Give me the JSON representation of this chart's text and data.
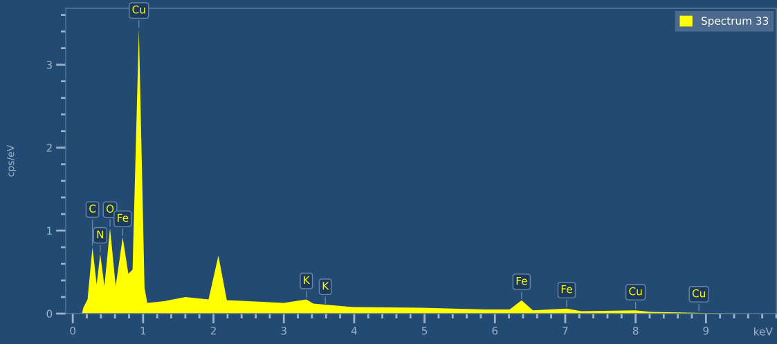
{
  "chart_data": {
    "type": "area",
    "xlabel": "keV",
    "ylabel": "cps/eV",
    "xlim": [
      -0.1,
      10.0
    ],
    "ylim": [
      0,
      3.68
    ],
    "xticks": [
      0,
      1,
      2,
      3,
      4,
      5,
      6,
      7,
      8,
      9
    ],
    "yticks": [
      0,
      1,
      2,
      3
    ],
    "grid": false,
    "legend": "top right",
    "series": [
      {
        "name": "Spectrum 33",
        "color": "#ffff00",
        "x": [
          0.13,
          0.15,
          0.21,
          0.28,
          0.34,
          0.39,
          0.45,
          0.53,
          0.61,
          0.71,
          0.79,
          0.85,
          0.94,
          1.02,
          1.06,
          1.3,
          1.6,
          1.93,
          2.07,
          2.19,
          2.24,
          3.0,
          3.32,
          3.42,
          3.98,
          4.97,
          5.85,
          6.21,
          6.38,
          6.54,
          7.02,
          7.23,
          8.0,
          8.21,
          9.46
        ],
        "values": [
          0,
          0.07,
          0.17,
          0.8,
          0.35,
          0.72,
          0.33,
          1.03,
          0.33,
          0.92,
          0.48,
          0.53,
          3.43,
          0.31,
          0.13,
          0.15,
          0.2,
          0.17,
          0.7,
          0.16,
          0.16,
          0.13,
          0.17,
          0.12,
          0.08,
          0.07,
          0.05,
          0.05,
          0.16,
          0.04,
          0.06,
          0.03,
          0.04,
          0.02,
          0
        ]
      }
    ],
    "annotations": [
      {
        "text": "C",
        "x": 0.28,
        "y": 0.8
      },
      {
        "text": "N",
        "x": 0.39,
        "y": 0.72
      },
      {
        "text": "O",
        "x": 0.53,
        "y": 1.03
      },
      {
        "text": "Fe",
        "x": 0.71,
        "y": 0.92
      },
      {
        "text": "Cu",
        "x": 0.94,
        "y": 3.43
      },
      {
        "text": "K",
        "x": 3.32,
        "y": 0.17
      },
      {
        "text": "K",
        "x": 3.59,
        "y": 0.1
      },
      {
        "text": "Fe",
        "x": 6.38,
        "y": 0.16
      },
      {
        "text": "Fe",
        "x": 7.02,
        "y": 0.06
      },
      {
        "text": "Cu",
        "x": 8.0,
        "y": 0.035
      },
      {
        "text": "Cu",
        "x": 8.9,
        "y": 0.01
      }
    ]
  }
}
